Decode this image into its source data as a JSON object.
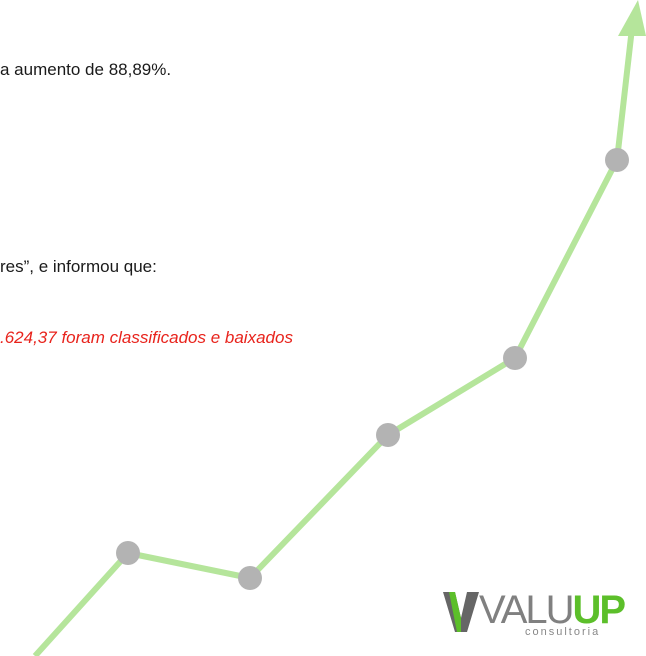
{
  "paragraphs": [
    "a aumento de 88,89%.",
    "res”, e informou que:"
  ],
  "highlight": ".624,37 foram classificados e baixados",
  "logo": {
    "name": "VALU",
    "accent": "UP",
    "tagline": "consultoria"
  }
}
